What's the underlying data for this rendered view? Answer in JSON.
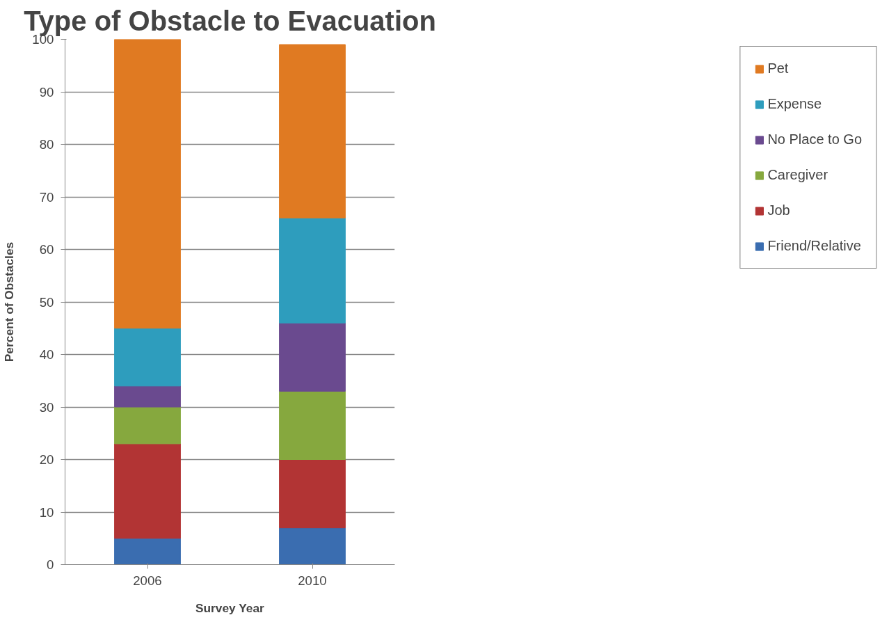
{
  "chart_data": {
    "type": "bar",
    "stacked": true,
    "title": "Type of Obstacle to Evacuation",
    "xlabel": "Survey Year",
    "ylabel": "Percent of Obstacles",
    "categories": [
      "2006",
      "2010"
    ],
    "series": [
      {
        "name": "Friend/Relative",
        "color": "#3a6db0",
        "values": [
          5,
          7
        ]
      },
      {
        "name": "Job",
        "color": "#b23434",
        "values": [
          18,
          13
        ]
      },
      {
        "name": "Caregiver",
        "color": "#86a83e",
        "values": [
          7,
          13
        ]
      },
      {
        "name": "No Place to Go",
        "color": "#6a4a8f",
        "values": [
          4,
          13
        ]
      },
      {
        "name": "Expense",
        "color": "#2e9dbd",
        "values": [
          11,
          20
        ]
      },
      {
        "name": "Pet",
        "color": "#e07a22",
        "values": [
          55,
          33
        ]
      }
    ],
    "ylim": [
      0,
      100
    ],
    "yticks": [
      0,
      10,
      20,
      30,
      40,
      50,
      60,
      70,
      80,
      90,
      100
    ],
    "grid": "y",
    "legend": "right"
  }
}
